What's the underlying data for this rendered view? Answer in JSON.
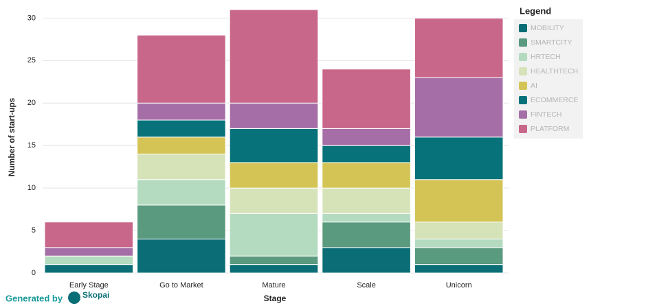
{
  "chart_data": {
    "type": "stacked_bar",
    "x_label": "Stage",
    "y_label": "Number of start-ups",
    "categories": [
      "Early Stage",
      "Go to Market",
      "Mature",
      "Scale",
      "Unicorn"
    ],
    "series": [
      {
        "name": "MOBILITY",
        "color": "#0b6e76",
        "values": [
          1,
          4,
          1,
          3,
          1
        ]
      },
      {
        "name": "SMARTCITY",
        "color": "#5a9a7e",
        "values": [
          0,
          4,
          1,
          3,
          2
        ]
      },
      {
        "name": "HRTECH",
        "color": "#b4dbc0",
        "values": [
          1,
          3,
          5,
          1,
          1
        ]
      },
      {
        "name": "HEALTHTECH",
        "color": "#d6e3b9",
        "values": [
          0,
          3,
          3,
          3,
          2
        ]
      },
      {
        "name": "AI",
        "color": "#d4c456",
        "values": [
          0,
          2,
          3,
          3,
          5
        ]
      },
      {
        "name": "ECOMMERCE",
        "color": "#07727a",
        "values": [
          0,
          2,
          4,
          2,
          5
        ]
      },
      {
        "name": "FINTECH",
        "color": "#a66ea6",
        "values": [
          1,
          2,
          3,
          2,
          7
        ]
      },
      {
        "name": "PLATFORM",
        "color": "#c8678a",
        "values": [
          3,
          8,
          11,
          7,
          7
        ]
      }
    ],
    "ylim": [
      0,
      31
    ],
    "yticks": [
      0,
      5,
      10,
      15,
      20,
      25,
      30
    ],
    "grid": true,
    "legend_title": "Legend",
    "legend_position": "right"
  },
  "footer": {
    "generated_by": "Generated by",
    "brand": "Skopai"
  }
}
